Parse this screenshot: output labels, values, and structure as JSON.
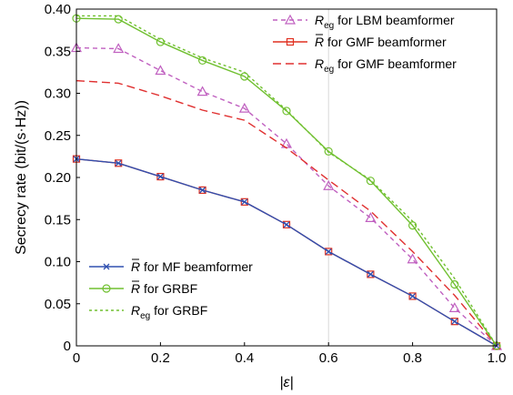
{
  "chart_data": {
    "type": "line",
    "xlabel": "|ε|",
    "ylabel": "Secrecy rate (bit/(s·Hz))",
    "xlim": [
      0,
      1.0
    ],
    "ylim": [
      0,
      0.4
    ],
    "xticks": [
      "0",
      "0.2",
      "0.4",
      "0.6",
      "0.8",
      "1.0"
    ],
    "yticks": [
      "0",
      "0.05",
      "0.10",
      "0.15",
      "0.20",
      "0.25",
      "0.30",
      "0.35",
      "0.40"
    ],
    "x": [
      0,
      0.1,
      0.2,
      0.3,
      0.4,
      0.5,
      0.6,
      0.7,
      0.8,
      0.9,
      1.0
    ],
    "grid": false,
    "vline_at": 0.6,
    "legends": [
      {
        "placement": "top-right",
        "entries": [
          {
            "series": 0,
            "symbol": "R",
            "sub": "eg",
            "bar": false,
            "text": " for LBM beamformer"
          },
          {
            "series": 1,
            "symbol": "R",
            "sub": "",
            "bar": true,
            "text": " for GMF beamformer"
          },
          {
            "series": 2,
            "symbol": "R",
            "sub": "eg",
            "bar": false,
            "text": " for GMF beamformer"
          }
        ]
      },
      {
        "placement": "bottom-left",
        "entries": [
          {
            "series": 3,
            "symbol": "R",
            "sub": "",
            "bar": true,
            "text": " for MF beamformer"
          },
          {
            "series": 4,
            "symbol": "R",
            "sub": "",
            "bar": true,
            "text": " for GRBF"
          },
          {
            "series": 5,
            "symbol": "R",
            "sub": "eg",
            "bar": false,
            "text": " for GRBF"
          }
        ]
      }
    ],
    "series": [
      {
        "color": "#c060c0",
        "dash": "5,4",
        "marker": "triangle",
        "values": [
          0.354,
          0.353,
          0.327,
          0.302,
          0.282,
          0.24,
          0.19,
          0.152,
          0.103,
          0.045,
          0
        ]
      },
      {
        "color": "#e03020",
        "dash": "",
        "marker": "square",
        "values": [
          0.222,
          0.217,
          0.201,
          0.185,
          0.171,
          0.144,
          0.112,
          0.085,
          0.059,
          0.029,
          0
        ]
      },
      {
        "color": "#e03030",
        "dash": "9,5",
        "marker": "none",
        "values": [
          0.315,
          0.312,
          0.297,
          0.28,
          0.268,
          0.235,
          0.197,
          0.16,
          0.112,
          0.06,
          0
        ]
      },
      {
        "color": "#3050b0",
        "dash": "",
        "marker": "x",
        "values": [
          0.222,
          0.217,
          0.201,
          0.185,
          0.171,
          0.144,
          0.112,
          0.085,
          0.059,
          0.029,
          0
        ]
      },
      {
        "color": "#70c030",
        "dash": "",
        "marker": "circle",
        "values": [
          0.389,
          0.388,
          0.361,
          0.339,
          0.32,
          0.279,
          0.231,
          0.196,
          0.143,
          0.073,
          0
        ]
      },
      {
        "color": "#70c030",
        "dash": "3,3",
        "marker": "none",
        "values": [
          0.392,
          0.392,
          0.364,
          0.342,
          0.325,
          0.28,
          0.23,
          0.197,
          0.148,
          0.08,
          0
        ]
      }
    ]
  }
}
